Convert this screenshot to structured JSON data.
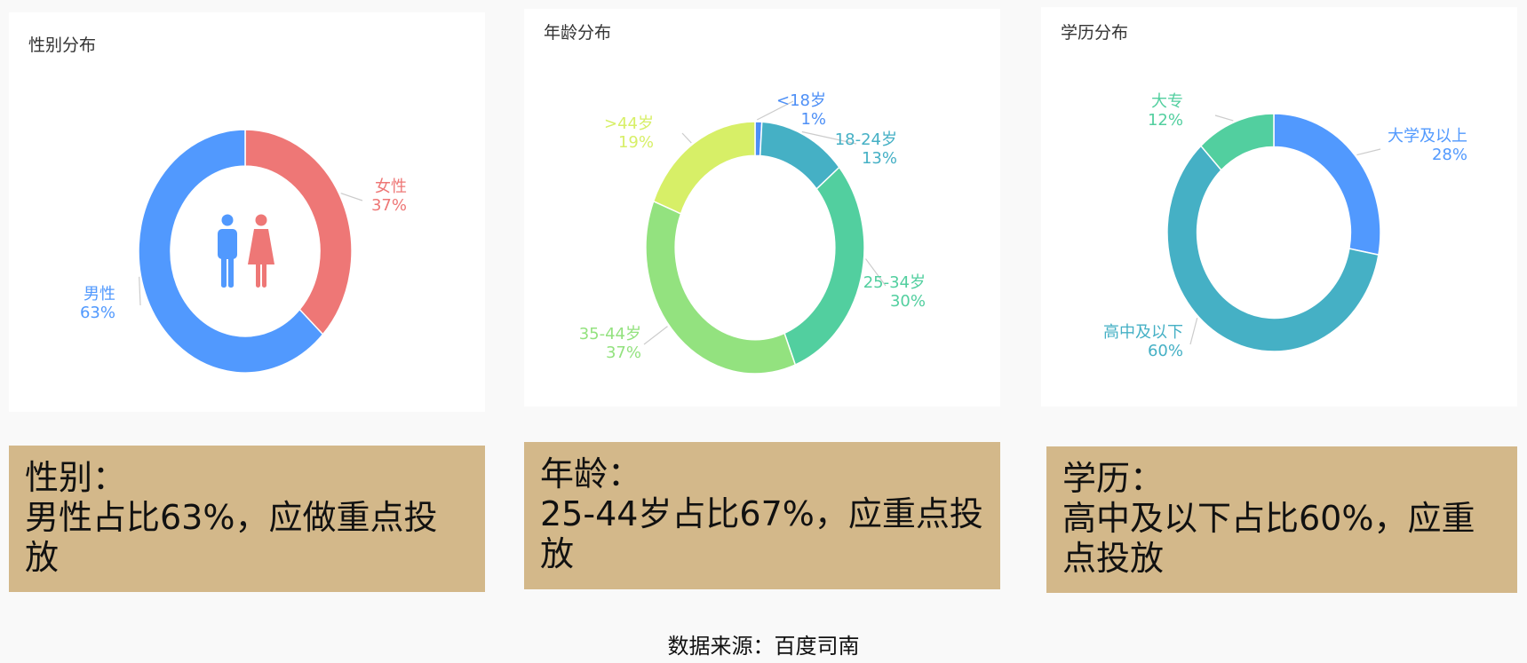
{
  "chart_data": [
    {
      "type": "pie",
      "title": "性别分布",
      "center_icon": "male-female-icon",
      "series": [
        {
          "label": "女性",
          "pct_label": "37%",
          "value": 37,
          "color": "#ee7776"
        },
        {
          "label": "男性",
          "pct_label": "63%",
          "value": 63,
          "color": "#5199fe"
        }
      ]
    },
    {
      "type": "pie",
      "title": "年龄分布",
      "series": [
        {
          "label": "<18岁",
          "pct_label": "1%",
          "value": 1,
          "color": "#4d8ff6"
        },
        {
          "label": "18-24岁",
          "pct_label": "13%",
          "value": 13,
          "color": "#45b0c5"
        },
        {
          "label": "25-34岁",
          "pct_label": "30%",
          "value": 30,
          "color": "#52cf9f"
        },
        {
          "label": "35-44岁",
          "pct_label": "37%",
          "value": 37,
          "color": "#93e27f"
        },
        {
          "label": ">44岁",
          "pct_label": "19%",
          "value": 19,
          "color": "#d7ef67"
        }
      ]
    },
    {
      "type": "pie",
      "title": "学历分布",
      "series": [
        {
          "label": "大学及以上",
          "pct_label": "28%",
          "value": 28,
          "color": "#5199fe"
        },
        {
          "label": "高中及以下",
          "pct_label": "60%",
          "value": 60,
          "color": "#45b0c5"
        },
        {
          "label": "大专",
          "pct_label": "12%",
          "value": 12,
          "color": "#52cf9f"
        }
      ]
    }
  ],
  "notes": [
    {
      "heading": "性别：",
      "body": "男性占比63%，应做重点投放"
    },
    {
      "heading": "年龄：",
      "body": "25-44岁占比67%，应重点投放"
    },
    {
      "heading": "学历：",
      "body": "高中及以下占比60%，应重点投放"
    }
  ],
  "source": "数据来源：百度司南",
  "colors": {
    "note_bg": "#d3b88a",
    "label_line": "#cccccc"
  }
}
